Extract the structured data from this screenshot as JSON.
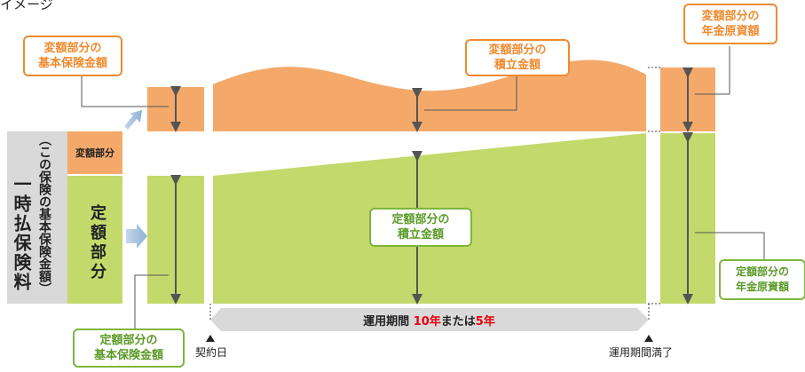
{
  "header": {
    "title_fragment": "イメージ"
  },
  "left_column": {
    "premium_label": "一時払保険料",
    "premium_sub": "（この保険の基本保険金額）",
    "variable_label": "変額部分",
    "fixed_label": "定額部分"
  },
  "callouts": {
    "variable_base": "変額部分の\n基本保険金額",
    "variable_accum": "変額部分の\n積立金額",
    "variable_annuity": "変額部分の\n年金原資額",
    "fixed_accum": "定額部分の\n積立金額",
    "fixed_annuity": "定額部分の\n年金原資額",
    "fixed_base": "定額部分の\n基本保険金額"
  },
  "timeline": {
    "period_prefix": "運用期間",
    "period_years_a": "10年",
    "period_or": "または",
    "period_years_b": "5年",
    "start_label": "契約日",
    "end_label": "運用期間満了"
  },
  "colors": {
    "orange_fill": "#f4a96a",
    "green_fill": "#c3d96b",
    "gray_fill": "#d9d9d9",
    "orange_border": "#f08a2e",
    "green_border": "#7db63b",
    "accent_red": "#e60012"
  }
}
